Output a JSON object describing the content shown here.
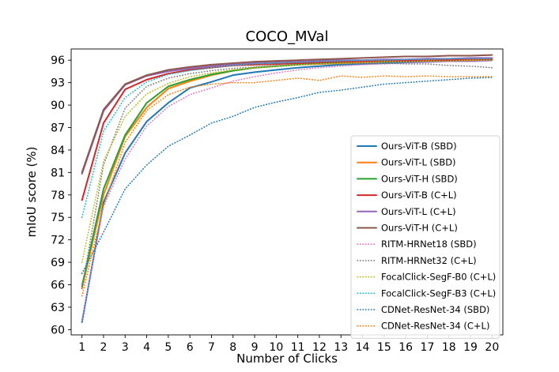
{
  "chart_data": {
    "type": "line",
    "title": "COCO_MVal",
    "xlabel": "Number of Clicks",
    "ylabel": "mIoU score (%)",
    "x": [
      1,
      2,
      3,
      4,
      5,
      6,
      7,
      8,
      9,
      10,
      11,
      12,
      13,
      14,
      15,
      16,
      17,
      18,
      19,
      20
    ],
    "xlim": [
      0.5,
      20.5
    ],
    "ylim": [
      59.3,
      97.5
    ],
    "yticks": [
      60,
      63,
      66,
      69,
      72,
      75,
      78,
      81,
      84,
      87,
      90,
      93,
      96
    ],
    "grid": false,
    "legend_position": "lower-right",
    "series": [
      {
        "name": "Ours-ViT-B (SBD)",
        "color": "#1f77b4",
        "style": "solid",
        "values": [
          61.0,
          77.0,
          83.6,
          87.8,
          90.3,
          92.3,
          93.1,
          94.0,
          94.4,
          94.7,
          95.0,
          95.2,
          95.4,
          95.5,
          95.6,
          95.7,
          95.8,
          95.9,
          95.9,
          96.0
        ]
      },
      {
        "name": "Ours-ViT-L (SBD)",
        "color": "#ff7f0e",
        "style": "solid",
        "values": [
          65.5,
          78.0,
          85.8,
          89.7,
          92.2,
          93.2,
          94.0,
          94.6,
          95.0,
          95.2,
          95.4,
          95.5,
          95.6,
          95.7,
          95.8,
          95.9,
          95.9,
          96.0,
          96.0,
          96.1
        ]
      },
      {
        "name": "Ours-ViT-H (SBD)",
        "color": "#2ca02c",
        "style": "solid",
        "values": [
          65.8,
          78.8,
          86.0,
          90.3,
          92.5,
          93.4,
          94.1,
          94.6,
          95.0,
          95.2,
          95.4,
          95.6,
          95.7,
          95.8,
          95.8,
          95.9,
          96.0,
          96.0,
          96.1,
          96.1
        ]
      },
      {
        "name": "Ours-ViT-B (C+L)",
        "color": "#d62728",
        "style": "solid",
        "values": [
          77.3,
          87.6,
          92.1,
          93.4,
          94.2,
          94.7,
          95.0,
          95.3,
          95.4,
          95.5,
          95.6,
          95.7,
          95.8,
          95.8,
          95.9,
          95.9,
          96.0,
          96.0,
          96.1,
          96.1
        ]
      },
      {
        "name": "Ours-ViT-L (C+L)",
        "color": "#9467bd",
        "style": "solid",
        "values": [
          80.8,
          89.2,
          92.7,
          93.9,
          94.5,
          94.9,
          95.2,
          95.4,
          95.6,
          95.7,
          95.8,
          95.9,
          96.0,
          96.0,
          96.1,
          96.1,
          96.2,
          96.2,
          96.3,
          96.3
        ]
      },
      {
        "name": "Ours-ViT-H (C+L)",
        "color": "#8c564b",
        "style": "solid",
        "values": [
          81.0,
          89.4,
          92.8,
          94.0,
          94.7,
          95.1,
          95.4,
          95.6,
          95.8,
          95.9,
          96.0,
          96.1,
          96.2,
          96.3,
          96.4,
          96.5,
          96.5,
          96.6,
          96.6,
          96.7
        ]
      },
      {
        "name": "RITM-HRNet18 (SBD)",
        "color": "#e377c2",
        "style": "dotted",
        "values": [
          61.2,
          76.5,
          82.8,
          87.2,
          89.8,
          91.4,
          92.3,
          93.2,
          93.8,
          94.3,
          94.7,
          95.0,
          95.2,
          95.4,
          95.5,
          95.6,
          95.7,
          95.8,
          95.8,
          95.9
        ]
      },
      {
        "name": "RITM-HRNet32 (C+L)",
        "color": "#7f7f7f",
        "style": "dotted",
        "values": [
          65.5,
          82.0,
          89.6,
          92.5,
          93.6,
          94.2,
          94.6,
          94.9,
          95.1,
          95.3,
          95.4,
          95.5,
          95.5,
          95.6,
          95.6,
          95.5,
          95.5,
          95.3,
          95.2,
          95.0
        ]
      },
      {
        "name": "FocalClick-SegF-B0 (C+L)",
        "color": "#bcbd22",
        "style": "dotted",
        "values": [
          69.0,
          82.5,
          88.5,
          91.5,
          92.9,
          93.8,
          94.3,
          94.7,
          95.0,
          95.2,
          95.4,
          95.5,
          95.6,
          95.7,
          95.8,
          95.8,
          95.9,
          95.9,
          96.0,
          96.0
        ]
      },
      {
        "name": "FocalClick-SegF-B3 (C+L)",
        "color": "#17becf",
        "style": "dotted",
        "values": [
          75.0,
          86.5,
          91.0,
          93.1,
          94.1,
          94.6,
          95.0,
          95.3,
          95.5,
          95.6,
          95.7,
          95.8,
          95.9,
          96.0,
          96.0,
          96.1,
          96.1,
          96.2,
          96.2,
          96.2
        ]
      },
      {
        "name": "CDNet-ResNet-34 (SBD)",
        "color": "#1f77b4",
        "style": "dotted",
        "values": [
          67.5,
          73.0,
          78.8,
          82.0,
          84.5,
          86.0,
          87.6,
          88.5,
          89.7,
          90.4,
          91.0,
          91.7,
          92.0,
          92.4,
          92.8,
          93.0,
          93.2,
          93.4,
          93.6,
          93.7
        ]
      },
      {
        "name": "CDNet-ResNet-34 (C+L)",
        "color": "#ff7f0e",
        "style": "dotted",
        "values": [
          64.5,
          76.5,
          85.0,
          89.3,
          91.4,
          92.4,
          92.8,
          93.0,
          93.0,
          93.3,
          93.6,
          93.3,
          93.9,
          93.7,
          93.9,
          93.8,
          93.9,
          93.8,
          93.8,
          93.8
        ]
      }
    ]
  }
}
